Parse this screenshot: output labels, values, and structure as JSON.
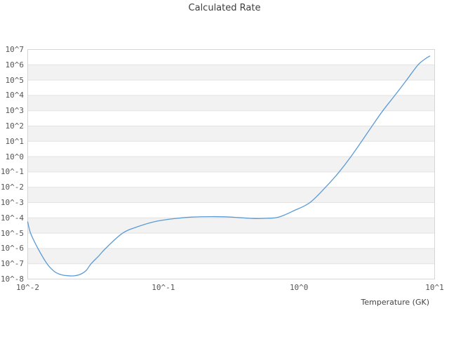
{
  "chart_data": {
    "type": "line",
    "title": "Calculated Rate",
    "xlabel": "Temperature (GK)",
    "ylabel": "",
    "x_scale": "log",
    "y_scale": "log",
    "xlim": [
      0.01,
      10
    ],
    "ylim": [
      1e-08,
      10000000.0
    ],
    "x_tick_labels": [
      "10^-2",
      "10^-1",
      "10^0",
      "10^1"
    ],
    "y_tick_labels": [
      "10^7",
      "10^6",
      "10^5",
      "10^4",
      "10^3",
      "10^2",
      "10^1",
      "10^0",
      "10^-1",
      "10^-2",
      "10^-3",
      "10^-4",
      "10^-5",
      "10^-6",
      "10^-7",
      "10^-8"
    ],
    "grid": "horizontal-only",
    "banding": "alternating-decade-bands",
    "legend": "none",
    "series": [
      {
        "name": "calculated-rate",
        "x": [
          0.01,
          0.0105,
          0.0119,
          0.0139,
          0.0157,
          0.0176,
          0.0197,
          0.0219,
          0.0243,
          0.0269,
          0.0293,
          0.0333,
          0.0375,
          0.0501,
          0.0661,
          0.0891,
          0.1259,
          0.1622,
          0.2239,
          0.2818,
          0.3548,
          0.4571,
          0.5623,
          0.7079,
          0.9333,
          1.205,
          1.57,
          1.977,
          2.415,
          2.897,
          3.459,
          4.15,
          5.093,
          6.209,
          7.551,
          8.511,
          9.204
        ],
        "y": [
          5.4e-05,
          1e-05,
          1e-06,
          1e-07,
          3.16e-08,
          1.95e-08,
          1.66e-08,
          1.62e-08,
          2e-08,
          3.55e-08,
          1e-07,
          3.16e-07,
          1e-06,
          1e-05,
          2.82e-05,
          6.03e-05,
          9.33e-05,
          0.000112,
          0.00012,
          0.000117,
          0.000105,
          9.12e-05,
          9.33e-05,
          0.000112,
          0.000316,
          0.001,
          0.01,
          0.1,
          1.0,
          10,
          100,
          1000,
          10000.0,
          100000.0,
          1000000.0,
          2400000.0,
          3700000.0
        ]
      }
    ],
    "colors": {
      "line": "#5b9bd5",
      "band": "#f2f2f2",
      "gridline": "#e3e3e3",
      "border": "#d6d6d6",
      "title_text": "#3c3c3c",
      "tick_text": "#555555"
    }
  }
}
